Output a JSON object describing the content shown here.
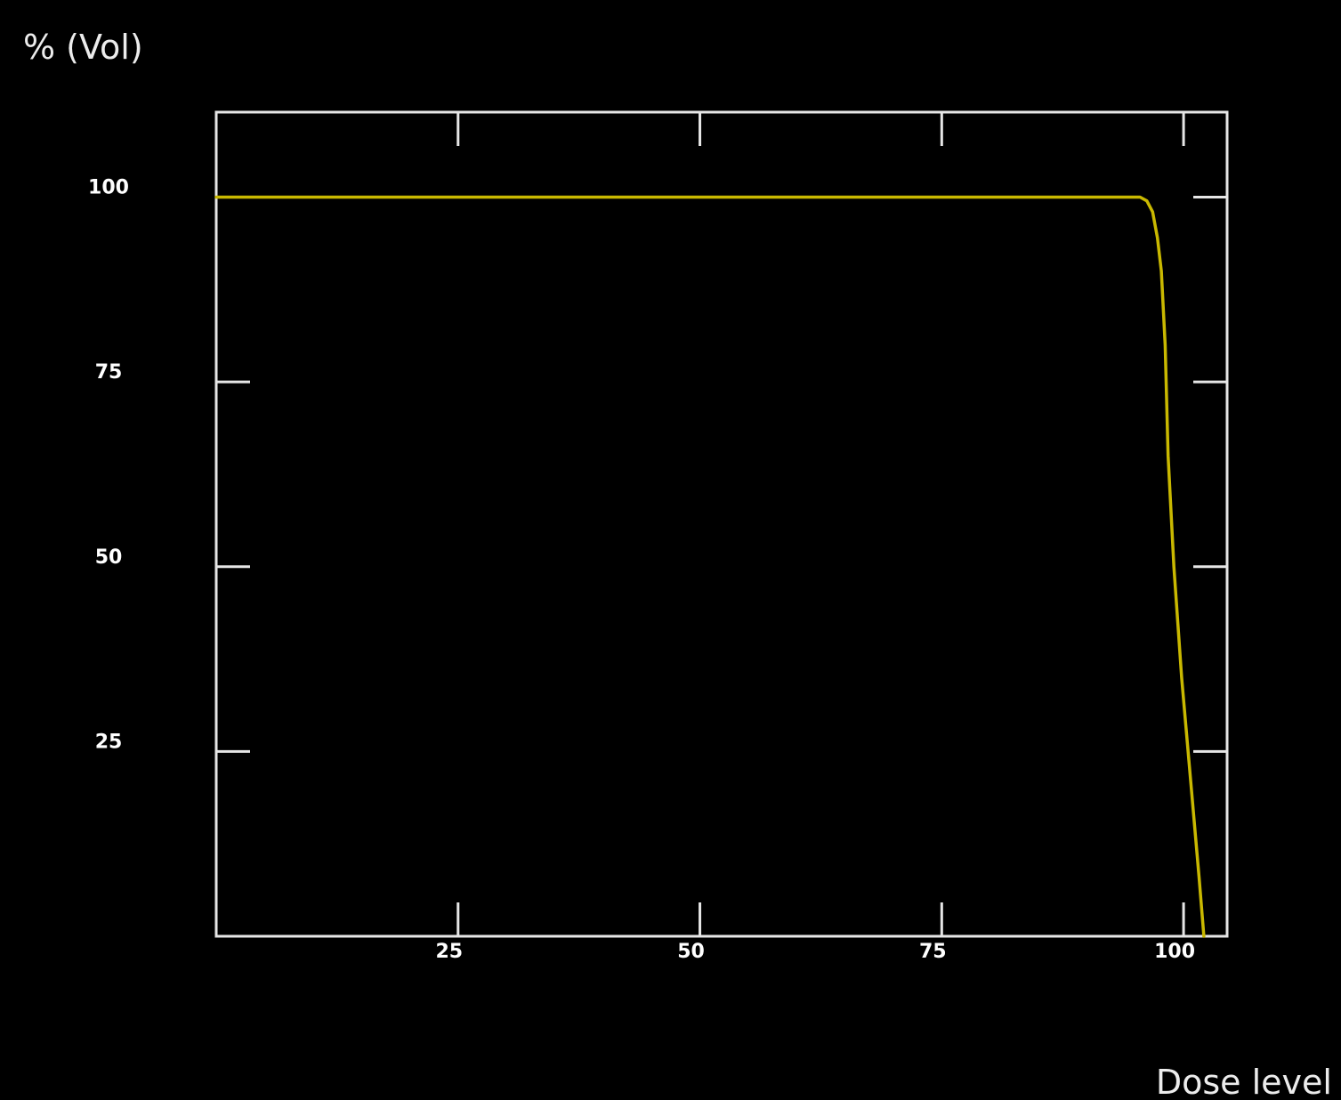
{
  "chart_data": {
    "type": "line",
    "title": "",
    "xlabel": "Dose level",
    "ylabel": "% (Vol)",
    "xlim": [
      0,
      104.5
    ],
    "ylim": [
      0,
      111.5
    ],
    "x_ticks": [
      25,
      50,
      75,
      100
    ],
    "y_ticks": [
      25,
      50,
      75,
      100
    ],
    "x_tick_labels": [
      "25",
      "50",
      "75",
      "100"
    ],
    "y_tick_labels": [
      "25",
      "50",
      "75",
      "100"
    ],
    "grid": false,
    "legend": "none",
    "background_color": "#000000",
    "axis_color": "#e6e6e6",
    "series": [
      {
        "color": "#c9b800",
        "x": [
          0,
          25,
          50,
          75,
          90,
          95.5,
          96.2,
          96.8,
          97.3,
          97.7,
          98.1,
          98.4,
          99.0,
          99.8,
          100.8,
          101.6,
          102.1
        ],
        "y": [
          100,
          100,
          100,
          100,
          100,
          100,
          99.5,
          98,
          94.5,
          90,
          80,
          65,
          50,
          35,
          20,
          8,
          0
        ]
      }
    ]
  }
}
